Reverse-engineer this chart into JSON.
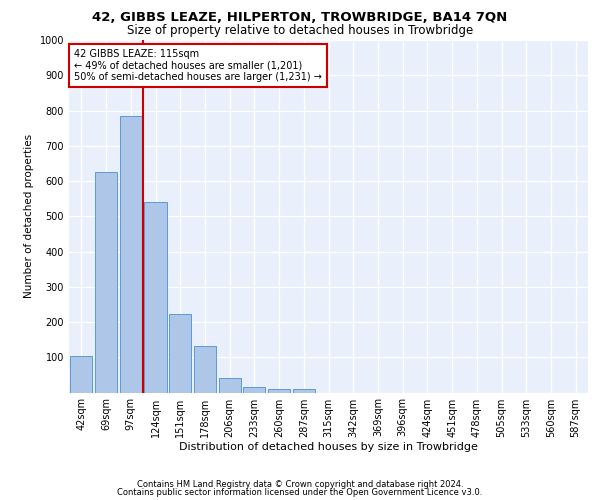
{
  "title1": "42, GIBBS LEAZE, HILPERTON, TROWBRIDGE, BA14 7QN",
  "title2": "Size of property relative to detached houses in Trowbridge",
  "xlabel": "Distribution of detached houses by size in Trowbridge",
  "ylabel": "Number of detached properties",
  "categories": [
    "42sqm",
    "69sqm",
    "97sqm",
    "124sqm",
    "151sqm",
    "178sqm",
    "206sqm",
    "233sqm",
    "260sqm",
    "287sqm",
    "315sqm",
    "342sqm",
    "369sqm",
    "396sqm",
    "424sqm",
    "451sqm",
    "478sqm",
    "505sqm",
    "533sqm",
    "560sqm",
    "587sqm"
  ],
  "values": [
    103,
    625,
    785,
    540,
    222,
    132,
    42,
    17,
    10,
    10,
    0,
    0,
    0,
    0,
    0,
    0,
    0,
    0,
    0,
    0,
    0
  ],
  "bar_color": "#aec6e8",
  "bar_edge_color": "#5b9bd5",
  "vline_color": "#cc0000",
  "vline_pos": 2.5,
  "annotation_text": "42 GIBBS LEAZE: 115sqm\n← 49% of detached houses are smaller (1,201)\n50% of semi-detached houses are larger (1,231) →",
  "annotation_box_color": "#ffffff",
  "annotation_box_edge": "#cc0000",
  "ylim": [
    0,
    1000
  ],
  "yticks": [
    0,
    100,
    200,
    300,
    400,
    500,
    600,
    700,
    800,
    900,
    1000
  ],
  "footer1": "Contains HM Land Registry data © Crown copyright and database right 2024.",
  "footer2": "Contains public sector information licensed under the Open Government Licence v3.0.",
  "plot_bg_color": "#eaf0fb",
  "title1_fontsize": 9.5,
  "title2_fontsize": 8.5,
  "xlabel_fontsize": 8,
  "ylabel_fontsize": 7.5,
  "tick_fontsize": 7,
  "annotation_fontsize": 7,
  "footer_fontsize": 6
}
